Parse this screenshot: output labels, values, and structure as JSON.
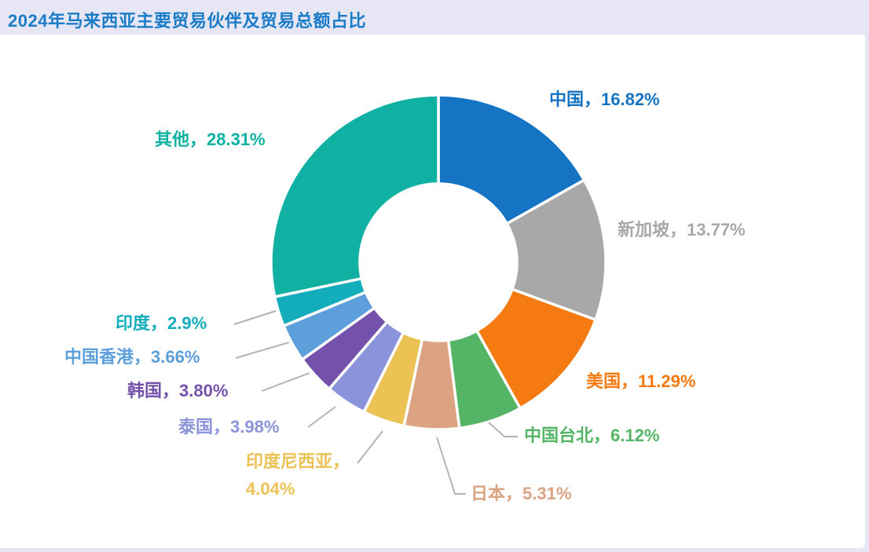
{
  "page": {
    "background_color": "#e6e6f4",
    "card_background": "#ffffff"
  },
  "header": {
    "title": "2024年马来西亚主要贸易伙伴及贸易总额占比",
    "title_color": "#1a7cc7"
  },
  "chart_data": {
    "type": "pie",
    "subtype": "donut",
    "title": "2024年马来西亚主要贸易伙伴及贸易总额占比",
    "unit": "percent",
    "total": 100,
    "start_angle_deg": 0,
    "direction": "clockwise",
    "grid": false,
    "legend_position": "outside-callout-labels",
    "leader_line_color": "#b3b3b3",
    "separator_color": "#ffffff",
    "segments": [
      {
        "id": "china",
        "name": "中国",
        "value": 16.82,
        "display": "中国，16.82%",
        "color": "#1574c4"
      },
      {
        "id": "singapore",
        "name": "新加坡",
        "value": 13.77,
        "display": "新加坡，13.77%",
        "color": "#a8a8a8"
      },
      {
        "id": "usa",
        "name": "美国",
        "value": 11.29,
        "display": "美国，11.29%",
        "color": "#f57a11"
      },
      {
        "id": "chinese-taipei",
        "name": "中国台北",
        "value": 6.12,
        "display": "中国台北，6.12%",
        "color": "#55b566"
      },
      {
        "id": "japan",
        "name": "日本",
        "value": 5.31,
        "display": "日本，5.31%",
        "color": "#dba381"
      },
      {
        "id": "indonesia",
        "name": "印度尼西亚",
        "value": 4.04,
        "display": "印度尼西亚，4.04%",
        "display_lines": [
          "印度尼西亚，",
          "4.04%"
        ],
        "color": "#ecc254"
      },
      {
        "id": "thailand",
        "name": "泰国",
        "value": 3.98,
        "display": "泰国，3.98%",
        "color": "#8b94da"
      },
      {
        "id": "south-korea",
        "name": "韩国",
        "value": 3.8,
        "display": "韩国，3.80%",
        "color": "#7452ab"
      },
      {
        "id": "hong-kong",
        "name": "中国香港",
        "value": 3.66,
        "display": "中国香港，3.66%",
        "color": "#5c9fdb"
      },
      {
        "id": "india",
        "name": "印度",
        "value": 2.9,
        "display": "印度，2.9%",
        "color": "#14adbb"
      },
      {
        "id": "others",
        "name": "其他",
        "value": 28.31,
        "display": "其他，28.31%",
        "color": "#10b1a2"
      }
    ]
  }
}
